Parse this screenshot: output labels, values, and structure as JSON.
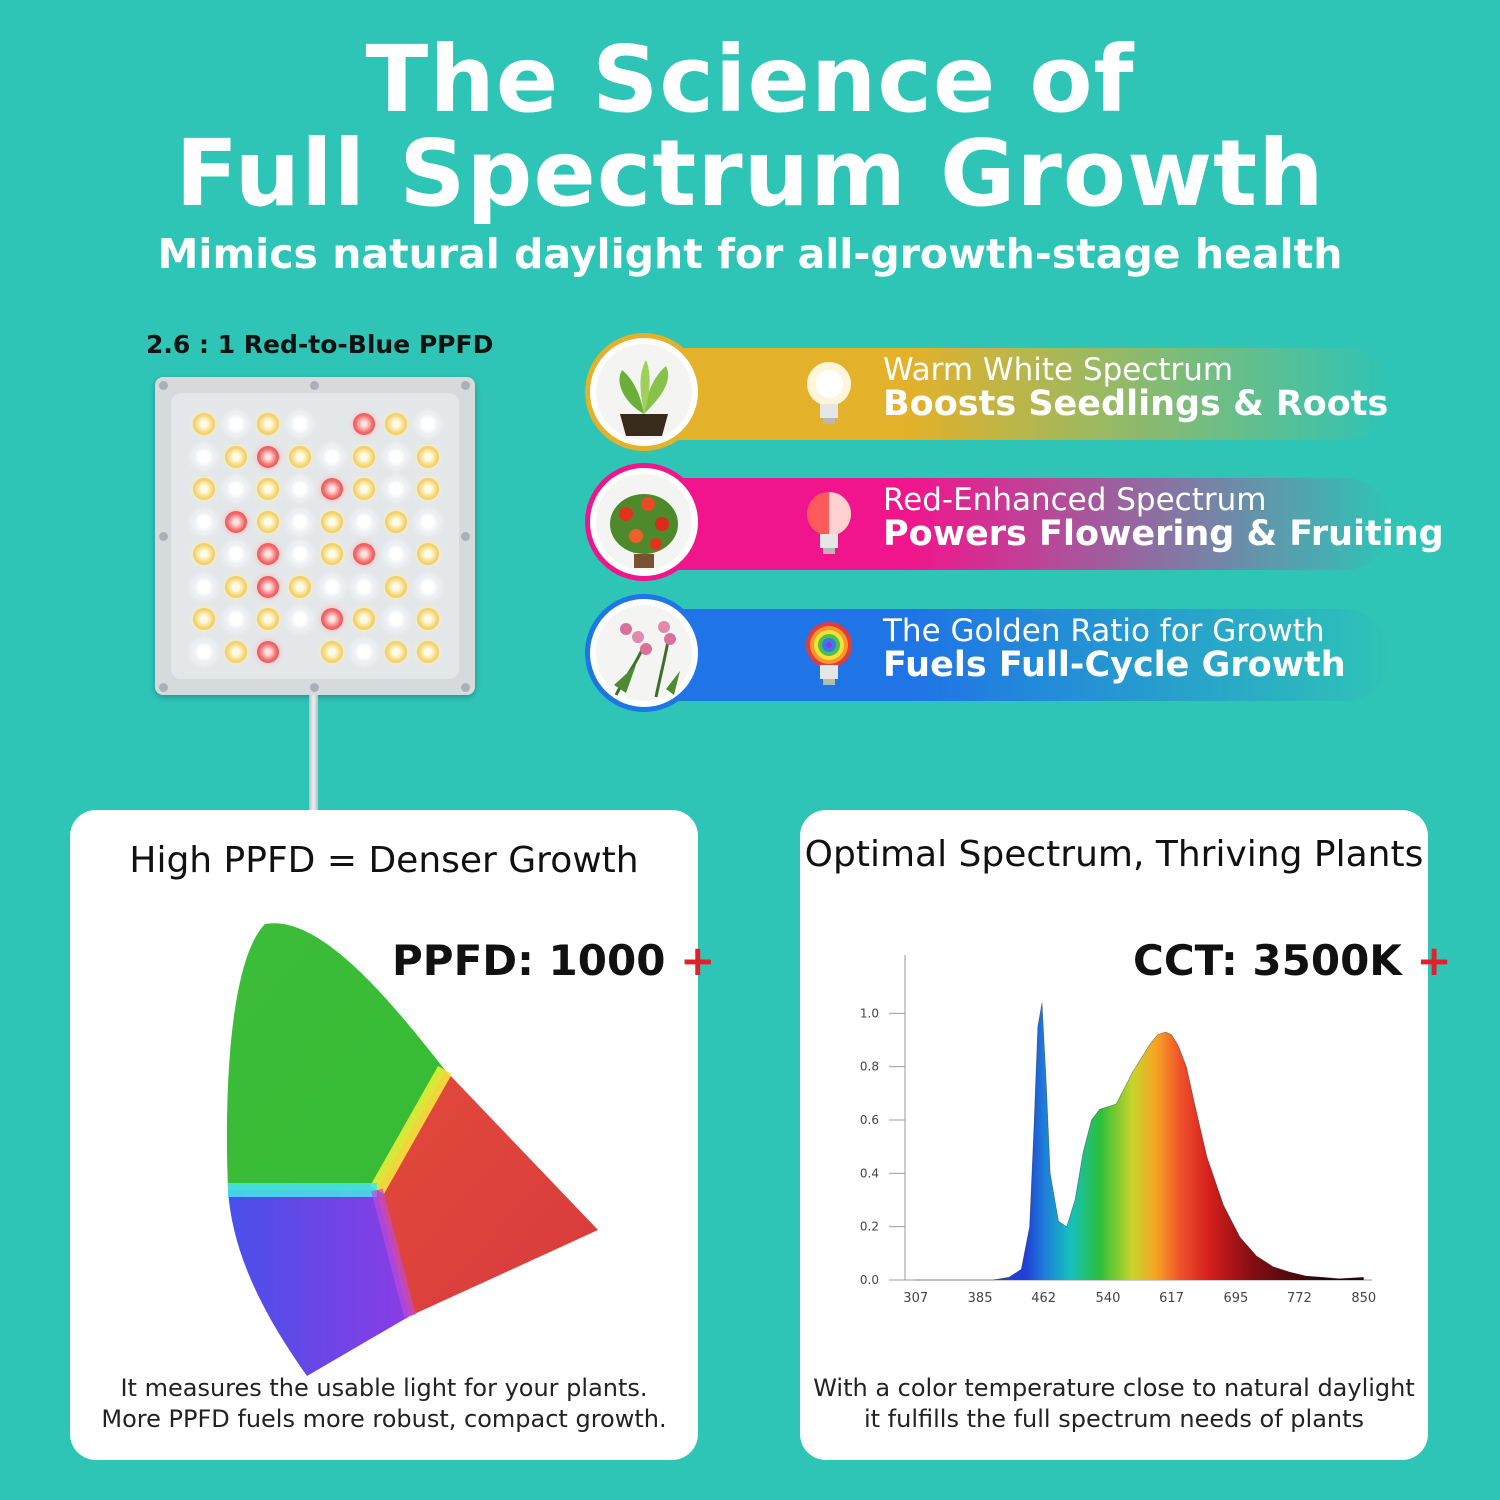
{
  "header": {
    "title_line_1": "The Science of",
    "title_line_2": "Full Spectrum Growth",
    "subtitle": "Mimics natural daylight for all-growth-stage health"
  },
  "fixture": {
    "ratio_label": "2.6 : 1 Red-to-Blue PPFD"
  },
  "spectrum_rows": [
    {
      "title": "Warm White Spectrum",
      "description": "Boosts Seedlings & Roots",
      "color": "#e3b12a",
      "icon": "seedling-photo-icon",
      "bulb": "warm-bulb-icon"
    },
    {
      "title": "Red-Enhanced Spectrum",
      "description": "Powers Flowering & Fruiting",
      "color": "#f0158c",
      "icon": "tomato-plant-photo-icon",
      "bulb": "red-bulb-icon"
    },
    {
      "title": "The Golden Ratio for Growth",
      "description": "Fuels Full-Cycle Growth",
      "color": "#1f74e6",
      "icon": "orchid-photo-icon",
      "bulb": "rainbow-bulb-icon"
    }
  ],
  "ppfd_card": {
    "heading": "High PPFD = Denser Growth",
    "metric_label": "PPFD: 1000",
    "metric_plus": "+",
    "caption_line_1": "It measures the usable light for your plants.",
    "caption_line_2": "More PPFD fuels more robust, compact growth."
  },
  "spectrum_card": {
    "heading": "Optimal Spectrum, Thriving Plants",
    "metric_label": "CCT: 3500K",
    "metric_plus": "+",
    "caption_line_1": "With a color temperature close to natural daylight",
    "caption_line_2": "it fulfills the full spectrum needs of plants"
  },
  "chart_data": {
    "type": "area",
    "title": "",
    "xlabel": "",
    "ylabel": "",
    "x_ticks": [
      307,
      385,
      462,
      540,
      617,
      695,
      772,
      850
    ],
    "y_ticks": [
      0.0,
      0.2,
      0.4,
      0.6,
      0.8,
      1.0
    ],
    "y_tick_labels": [
      "0.0",
      "0.2",
      "0.4",
      "0.6",
      "0.8",
      "1.0"
    ],
    "xlim": [
      294,
      860
    ],
    "ylim": [
      0,
      1.2
    ],
    "grid": false,
    "series": [
      {
        "x": [
          307,
          330,
          370,
          385,
          400,
          420,
          435,
          445,
          450,
          455,
          460,
          465,
          470,
          480,
          490,
          500,
          510,
          520,
          530,
          540,
          550,
          560,
          570,
          580,
          590,
          600,
          610,
          617,
          625,
          635,
          645,
          660,
          680,
          700,
          720,
          740,
          760,
          780,
          800,
          820,
          850
        ],
        "y": [
          0.0,
          0.0,
          0.0,
          0.0,
          0.0,
          0.01,
          0.04,
          0.2,
          0.55,
          0.95,
          1.04,
          0.75,
          0.4,
          0.22,
          0.2,
          0.3,
          0.48,
          0.6,
          0.64,
          0.65,
          0.66,
          0.72,
          0.78,
          0.83,
          0.88,
          0.92,
          0.93,
          0.92,
          0.88,
          0.8,
          0.66,
          0.46,
          0.28,
          0.16,
          0.09,
          0.05,
          0.03,
          0.015,
          0.01,
          0.005,
          0.01
        ]
      }
    ]
  }
}
